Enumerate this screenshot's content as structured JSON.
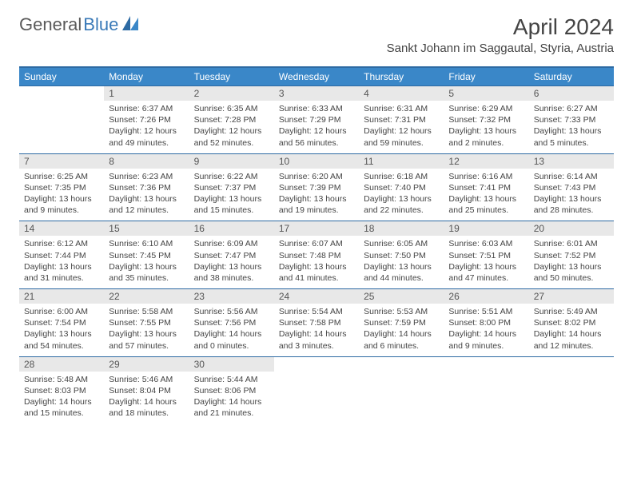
{
  "brand": {
    "general": "General",
    "blue": "Blue"
  },
  "title": "April 2024",
  "location": "Sankt Johann im Saggautal, Styria, Austria",
  "colors": {
    "header_bg": "#3a87c8",
    "border": "#2d6aa3",
    "daynum_bg": "#e8e8e8",
    "text": "#444444",
    "logo_gray": "#5a5a5a",
    "logo_blue": "#3a7ab8"
  },
  "weekday_labels": [
    "Sunday",
    "Monday",
    "Tuesday",
    "Wednesday",
    "Thursday",
    "Friday",
    "Saturday"
  ],
  "weeks": [
    {
      "nums": [
        "",
        "1",
        "2",
        "3",
        "4",
        "5",
        "6"
      ],
      "cells": [
        {
          "sunrise": "",
          "sunset": "",
          "daylight": ""
        },
        {
          "sunrise": "Sunrise: 6:37 AM",
          "sunset": "Sunset: 7:26 PM",
          "daylight": "Daylight: 12 hours and 49 minutes."
        },
        {
          "sunrise": "Sunrise: 6:35 AM",
          "sunset": "Sunset: 7:28 PM",
          "daylight": "Daylight: 12 hours and 52 minutes."
        },
        {
          "sunrise": "Sunrise: 6:33 AM",
          "sunset": "Sunset: 7:29 PM",
          "daylight": "Daylight: 12 hours and 56 minutes."
        },
        {
          "sunrise": "Sunrise: 6:31 AM",
          "sunset": "Sunset: 7:31 PM",
          "daylight": "Daylight: 12 hours and 59 minutes."
        },
        {
          "sunrise": "Sunrise: 6:29 AM",
          "sunset": "Sunset: 7:32 PM",
          "daylight": "Daylight: 13 hours and 2 minutes."
        },
        {
          "sunrise": "Sunrise: 6:27 AM",
          "sunset": "Sunset: 7:33 PM",
          "daylight": "Daylight: 13 hours and 5 minutes."
        }
      ]
    },
    {
      "nums": [
        "7",
        "8",
        "9",
        "10",
        "11",
        "12",
        "13"
      ],
      "cells": [
        {
          "sunrise": "Sunrise: 6:25 AM",
          "sunset": "Sunset: 7:35 PM",
          "daylight": "Daylight: 13 hours and 9 minutes."
        },
        {
          "sunrise": "Sunrise: 6:23 AM",
          "sunset": "Sunset: 7:36 PM",
          "daylight": "Daylight: 13 hours and 12 minutes."
        },
        {
          "sunrise": "Sunrise: 6:22 AM",
          "sunset": "Sunset: 7:37 PM",
          "daylight": "Daylight: 13 hours and 15 minutes."
        },
        {
          "sunrise": "Sunrise: 6:20 AM",
          "sunset": "Sunset: 7:39 PM",
          "daylight": "Daylight: 13 hours and 19 minutes."
        },
        {
          "sunrise": "Sunrise: 6:18 AM",
          "sunset": "Sunset: 7:40 PM",
          "daylight": "Daylight: 13 hours and 22 minutes."
        },
        {
          "sunrise": "Sunrise: 6:16 AM",
          "sunset": "Sunset: 7:41 PM",
          "daylight": "Daylight: 13 hours and 25 minutes."
        },
        {
          "sunrise": "Sunrise: 6:14 AM",
          "sunset": "Sunset: 7:43 PM",
          "daylight": "Daylight: 13 hours and 28 minutes."
        }
      ]
    },
    {
      "nums": [
        "14",
        "15",
        "16",
        "17",
        "18",
        "19",
        "20"
      ],
      "cells": [
        {
          "sunrise": "Sunrise: 6:12 AM",
          "sunset": "Sunset: 7:44 PM",
          "daylight": "Daylight: 13 hours and 31 minutes."
        },
        {
          "sunrise": "Sunrise: 6:10 AM",
          "sunset": "Sunset: 7:45 PM",
          "daylight": "Daylight: 13 hours and 35 minutes."
        },
        {
          "sunrise": "Sunrise: 6:09 AM",
          "sunset": "Sunset: 7:47 PM",
          "daylight": "Daylight: 13 hours and 38 minutes."
        },
        {
          "sunrise": "Sunrise: 6:07 AM",
          "sunset": "Sunset: 7:48 PM",
          "daylight": "Daylight: 13 hours and 41 minutes."
        },
        {
          "sunrise": "Sunrise: 6:05 AM",
          "sunset": "Sunset: 7:50 PM",
          "daylight": "Daylight: 13 hours and 44 minutes."
        },
        {
          "sunrise": "Sunrise: 6:03 AM",
          "sunset": "Sunset: 7:51 PM",
          "daylight": "Daylight: 13 hours and 47 minutes."
        },
        {
          "sunrise": "Sunrise: 6:01 AM",
          "sunset": "Sunset: 7:52 PM",
          "daylight": "Daylight: 13 hours and 50 minutes."
        }
      ]
    },
    {
      "nums": [
        "21",
        "22",
        "23",
        "24",
        "25",
        "26",
        "27"
      ],
      "cells": [
        {
          "sunrise": "Sunrise: 6:00 AM",
          "sunset": "Sunset: 7:54 PM",
          "daylight": "Daylight: 13 hours and 54 minutes."
        },
        {
          "sunrise": "Sunrise: 5:58 AM",
          "sunset": "Sunset: 7:55 PM",
          "daylight": "Daylight: 13 hours and 57 minutes."
        },
        {
          "sunrise": "Sunrise: 5:56 AM",
          "sunset": "Sunset: 7:56 PM",
          "daylight": "Daylight: 14 hours and 0 minutes."
        },
        {
          "sunrise": "Sunrise: 5:54 AM",
          "sunset": "Sunset: 7:58 PM",
          "daylight": "Daylight: 14 hours and 3 minutes."
        },
        {
          "sunrise": "Sunrise: 5:53 AM",
          "sunset": "Sunset: 7:59 PM",
          "daylight": "Daylight: 14 hours and 6 minutes."
        },
        {
          "sunrise": "Sunrise: 5:51 AM",
          "sunset": "Sunset: 8:00 PM",
          "daylight": "Daylight: 14 hours and 9 minutes."
        },
        {
          "sunrise": "Sunrise: 5:49 AM",
          "sunset": "Sunset: 8:02 PM",
          "daylight": "Daylight: 14 hours and 12 minutes."
        }
      ]
    },
    {
      "nums": [
        "28",
        "29",
        "30",
        "",
        "",
        "",
        ""
      ],
      "cells": [
        {
          "sunrise": "Sunrise: 5:48 AM",
          "sunset": "Sunset: 8:03 PM",
          "daylight": "Daylight: 14 hours and 15 minutes."
        },
        {
          "sunrise": "Sunrise: 5:46 AM",
          "sunset": "Sunset: 8:04 PM",
          "daylight": "Daylight: 14 hours and 18 minutes."
        },
        {
          "sunrise": "Sunrise: 5:44 AM",
          "sunset": "Sunset: 8:06 PM",
          "daylight": "Daylight: 14 hours and 21 minutes."
        },
        {
          "sunrise": "",
          "sunset": "",
          "daylight": ""
        },
        {
          "sunrise": "",
          "sunset": "",
          "daylight": ""
        },
        {
          "sunrise": "",
          "sunset": "",
          "daylight": ""
        },
        {
          "sunrise": "",
          "sunset": "",
          "daylight": ""
        }
      ]
    }
  ]
}
